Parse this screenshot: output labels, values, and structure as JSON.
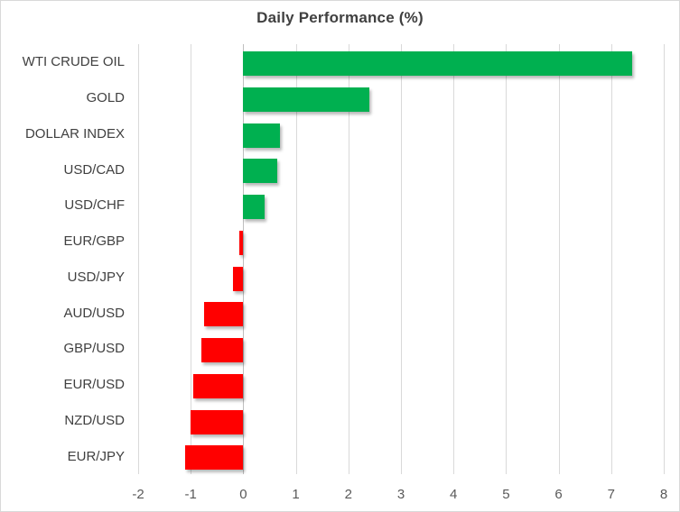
{
  "chart_data": {
    "type": "bar",
    "orientation": "horizontal",
    "title": "Daily Performance (%)",
    "categories": [
      "WTI CRUDE OIL",
      "GOLD",
      "DOLLAR INDEX",
      "USD/CAD",
      "USD/CHF",
      "EUR/GBP",
      "USD/JPY",
      "AUD/USD",
      "GBP/USD",
      "EUR/USD",
      "NZD/USD",
      "EUR/JPY"
    ],
    "values": [
      7.4,
      2.4,
      0.7,
      0.65,
      0.4,
      -0.08,
      -0.2,
      -0.75,
      -0.8,
      -0.95,
      -1.0,
      -1.1
    ],
    "xlim": [
      -2,
      8
    ],
    "xticks": [
      -2,
      -1,
      0,
      1,
      2,
      3,
      4,
      5,
      6,
      7,
      8
    ],
    "grid": true,
    "legend": "none",
    "colors": {
      "positive": "#00B050",
      "negative": "#FF0000",
      "gridline": "#D9D9D9",
      "zero_line": "#BFBFBF",
      "title_text": "#404040",
      "category_text": "#404040",
      "tick_text": "#595959",
      "chart_border": "#D9D9D9"
    }
  }
}
